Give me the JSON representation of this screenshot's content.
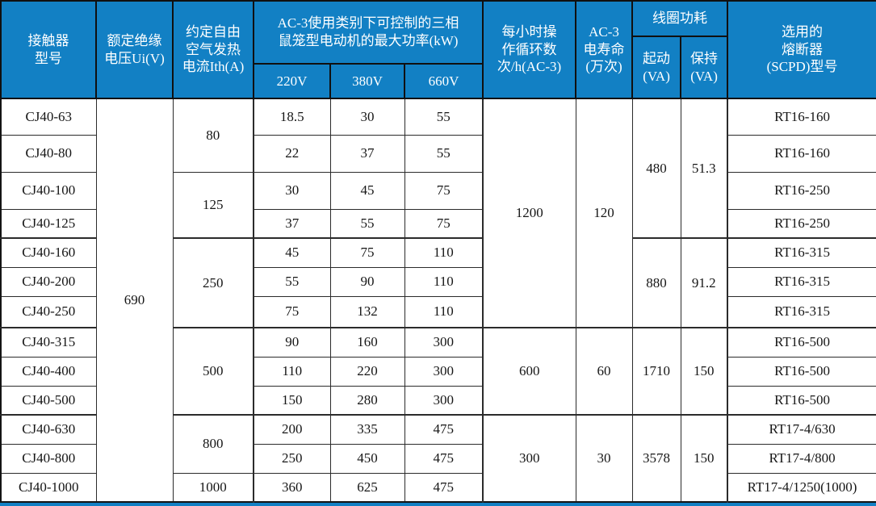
{
  "colors": {
    "header_bg": "#1280c4",
    "header_text": "#ffffff",
    "grid_line": "#2b2b2b",
    "body_text": "#161616",
    "accent_bar": "#1280c4"
  },
  "table": {
    "header": {
      "model": "接触器\n型号",
      "rated_voltage": "额定绝缘\n电压Ui(V)",
      "thermal_current": "约定自由\n空气发热\n电流Ith(A)",
      "power_group": "AC-3使用类别下可控制的三相\n鼠笼型电动机的最大功率(kW)",
      "v220": "220V",
      "v380": "380V",
      "v660": "660V",
      "cycles": "每小时操\n作循环数\n次/h(AC-3)",
      "life": "AC-3\n电寿命\n(万次)",
      "coil_power": "线圈功耗",
      "start_va": "起动\n(VA)",
      "hold_va": "保持\n(VA)",
      "fuse": "选用的\n熔断器\n(SCPD)型号"
    },
    "body_rows": [
      {
        "cells": [
          {
            "k": "model",
            "t": "CJ40-63"
          },
          {
            "k": "ui",
            "t": "690",
            "rs": 13
          },
          {
            "k": "ith",
            "t": "80",
            "rs": 2
          },
          {
            "k": "p220",
            "t": "18.5"
          },
          {
            "k": "p380",
            "t": "30"
          },
          {
            "k": "p660",
            "t": "55"
          },
          {
            "k": "cycles",
            "t": "1200",
            "rs": 7
          },
          {
            "k": "life",
            "t": "120",
            "rs": 7
          },
          {
            "k": "start_va",
            "t": "480",
            "rs": 4
          },
          {
            "k": "hold_va",
            "t": "51.3",
            "rs": 4
          },
          {
            "k": "fuse",
            "t": "RT16-160"
          }
        ]
      },
      {
        "cells": [
          {
            "k": "model",
            "t": "CJ40-80"
          },
          {
            "k": "p220",
            "t": "22"
          },
          {
            "k": "p380",
            "t": "37"
          },
          {
            "k": "p660",
            "t": "55"
          },
          {
            "k": "fuse",
            "t": "RT16-160"
          }
        ]
      },
      {
        "cells": [
          {
            "k": "model",
            "t": "CJ40-100"
          },
          {
            "k": "ith",
            "t": "125",
            "rs": 2
          },
          {
            "k": "p220",
            "t": "30"
          },
          {
            "k": "p380",
            "t": "45"
          },
          {
            "k": "p660",
            "t": "75"
          },
          {
            "k": "fuse",
            "t": "RT16-250"
          }
        ]
      },
      {
        "cells": [
          {
            "k": "model",
            "t": "CJ40-125"
          },
          {
            "k": "p220",
            "t": "37"
          },
          {
            "k": "p380",
            "t": "55"
          },
          {
            "k": "p660",
            "t": "75"
          },
          {
            "k": "fuse",
            "t": "RT16-250"
          }
        ]
      },
      {
        "cells": [
          {
            "k": "model",
            "t": "CJ40-160"
          },
          {
            "k": "ith",
            "t": "250",
            "rs": 3
          },
          {
            "k": "p220",
            "t": "45"
          },
          {
            "k": "p380",
            "t": "75"
          },
          {
            "k": "p660",
            "t": "110"
          },
          {
            "k": "start_va",
            "t": "880",
            "rs": 3
          },
          {
            "k": "hold_va",
            "t": "91.2",
            "rs": 3
          },
          {
            "k": "fuse",
            "t": "RT16-315"
          }
        ]
      },
      {
        "cells": [
          {
            "k": "model",
            "t": "CJ40-200"
          },
          {
            "k": "p220",
            "t": "55"
          },
          {
            "k": "p380",
            "t": "90"
          },
          {
            "k": "p660",
            "t": "110"
          },
          {
            "k": "fuse",
            "t": "RT16-315"
          }
        ]
      },
      {
        "cells": [
          {
            "k": "model",
            "t": "CJ40-250"
          },
          {
            "k": "p220",
            "t": "75"
          },
          {
            "k": "p380",
            "t": "132"
          },
          {
            "k": "p660",
            "t": "110"
          },
          {
            "k": "fuse",
            "t": "RT16-315"
          }
        ]
      },
      {
        "cells": [
          {
            "k": "model",
            "t": "CJ40-315"
          },
          {
            "k": "ith",
            "t": "500",
            "rs": 3
          },
          {
            "k": "p220",
            "t": "90"
          },
          {
            "k": "p380",
            "t": "160"
          },
          {
            "k": "p660",
            "t": "300"
          },
          {
            "k": "cycles",
            "t": "600",
            "rs": 3
          },
          {
            "k": "life",
            "t": "60",
            "rs": 3
          },
          {
            "k": "start_va",
            "t": "1710",
            "rs": 3
          },
          {
            "k": "hold_va",
            "t": "150",
            "rs": 3
          },
          {
            "k": "fuse",
            "t": "RT16-500"
          }
        ]
      },
      {
        "cells": [
          {
            "k": "model",
            "t": "CJ40-400"
          },
          {
            "k": "p220",
            "t": "110"
          },
          {
            "k": "p380",
            "t": "220"
          },
          {
            "k": "p660",
            "t": "300"
          },
          {
            "k": "fuse",
            "t": "RT16-500"
          }
        ]
      },
      {
        "cells": [
          {
            "k": "model",
            "t": "CJ40-500"
          },
          {
            "k": "p220",
            "t": "150"
          },
          {
            "k": "p380",
            "t": "280"
          },
          {
            "k": "p660",
            "t": "300"
          },
          {
            "k": "fuse",
            "t": "RT16-500"
          }
        ]
      },
      {
        "cells": [
          {
            "k": "model",
            "t": "CJ40-630"
          },
          {
            "k": "ith",
            "t": "800",
            "rs": 2
          },
          {
            "k": "p220",
            "t": "200"
          },
          {
            "k": "p380",
            "t": "335"
          },
          {
            "k": "p660",
            "t": "475"
          },
          {
            "k": "cycles",
            "t": "300",
            "rs": 3
          },
          {
            "k": "life",
            "t": "30",
            "rs": 3
          },
          {
            "k": "start_va",
            "t": "3578",
            "rs": 3
          },
          {
            "k": "hold_va",
            "t": "150",
            "rs": 3
          },
          {
            "k": "fuse",
            "t": "RT17-4/630"
          }
        ]
      },
      {
        "cells": [
          {
            "k": "model",
            "t": "CJ40-800"
          },
          {
            "k": "p220",
            "t": "250"
          },
          {
            "k": "p380",
            "t": "450"
          },
          {
            "k": "p660",
            "t": "475"
          },
          {
            "k": "fuse",
            "t": "RT17-4/800"
          }
        ]
      },
      {
        "cells": [
          {
            "k": "model",
            "t": "CJ40-1000"
          },
          {
            "k": "ith",
            "t": "1000"
          },
          {
            "k": "p220",
            "t": "360"
          },
          {
            "k": "p380",
            "t": "625"
          },
          {
            "k": "p660",
            "t": "475"
          },
          {
            "k": "fuse",
            "t": "RT17-4/1250(1000)"
          }
        ]
      }
    ]
  }
}
